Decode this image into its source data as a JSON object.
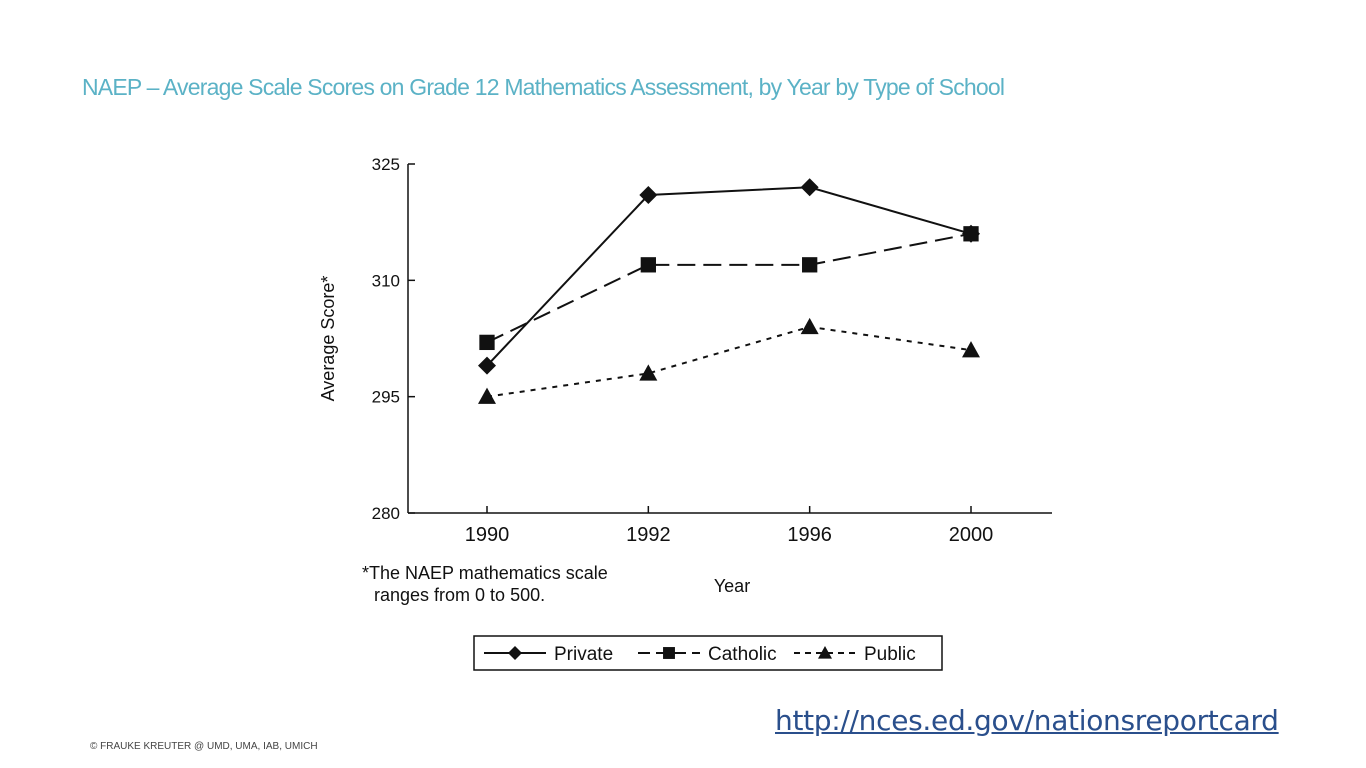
{
  "slide": {
    "title": "NAEP – Average Scale Scores on Grade 12 Mathematics Assessment, by Year by Type of School",
    "link_text": "http://nces.ed.gov/nationsreportcard",
    "copyright": "© FRAUKE KREUTER @ UMD, UMA, IAB,  UMICH",
    "footnote_line1": "*The NAEP mathematics scale",
    "footnote_line2": "ranges from 0 to 500.",
    "link_color": "#2a4f8c",
    "title_color": "#5bb2c6"
  },
  "chart_data": {
    "type": "line",
    "title": "",
    "xlabel": "Year",
    "ylabel": "Average Score*",
    "categories": [
      "1990",
      "1992",
      "1996",
      "2000"
    ],
    "y_ticks": [
      "325",
      "310",
      "295",
      "280"
    ],
    "ylim": [
      280,
      325
    ],
    "grid": false,
    "legend_position": "bottom",
    "series": [
      {
        "name": "Private",
        "marker": "diamond",
        "line_style": "solid",
        "values": [
          299,
          321,
          322,
          316
        ]
      },
      {
        "name": "Catholic",
        "marker": "square",
        "line_style": "dashed",
        "values": [
          302,
          312,
          312,
          316
        ]
      },
      {
        "name": "Public",
        "marker": "triangle",
        "line_style": "dotted",
        "values": [
          295,
          298,
          304,
          301
        ]
      }
    ]
  }
}
